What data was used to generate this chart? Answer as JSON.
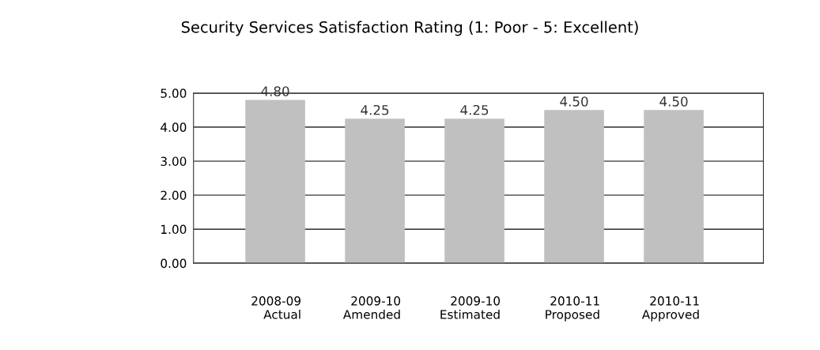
{
  "chart_data": {
    "type": "bar",
    "title": "Security Services Satisfaction Rating (1: Poor - 5: Excellent)",
    "categories": [
      "2008-09\nActual",
      "2009-10\nAmended",
      "2009-10\nEstimated",
      "2010-11\nProposed",
      "2010-11\nApproved"
    ],
    "values": [
      4.8,
      4.25,
      4.25,
      4.5,
      4.5
    ],
    "color": "#c0c0c0",
    "value_labels": [
      "4.80",
      "4.25",
      "4.25",
      "4.50",
      "4.50"
    ],
    "ylim": [
      0,
      5
    ],
    "yticks": [
      {
        "value": 0,
        "label": "0.00"
      },
      {
        "value": 1,
        "label": "1.00"
      },
      {
        "value": 2,
        "label": "2.00"
      },
      {
        "value": 3,
        "label": "3.00"
      },
      {
        "value": 4,
        "label": "4.00"
      },
      {
        "value": 5,
        "label": "5.00"
      }
    ],
    "grid": "y",
    "legend": false
  }
}
